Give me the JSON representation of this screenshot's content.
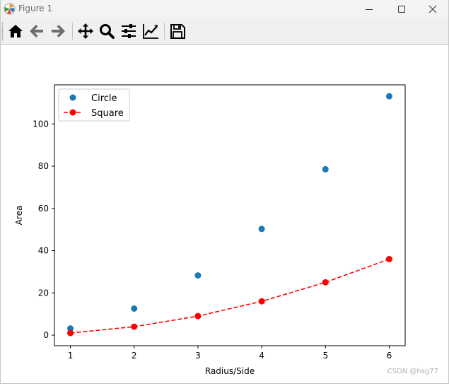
{
  "window": {
    "title": "Figure 1"
  },
  "toolbar": {
    "buttons": [
      {
        "name": "home-icon"
      },
      {
        "name": "back-icon"
      },
      {
        "name": "forward-icon"
      },
      {
        "name": "pan-icon"
      },
      {
        "name": "zoom-icon"
      },
      {
        "name": "configure-subplots-icon"
      },
      {
        "name": "edit-axis-icon"
      },
      {
        "name": "save-icon"
      }
    ]
  },
  "chart_data": {
    "type": "line",
    "title": "",
    "xlabel": "Radius/Side",
    "ylabel": "Area",
    "xlim": [
      0.75,
      6.25
    ],
    "ylim": [
      -5,
      118.5
    ],
    "xticks": [
      1,
      2,
      3,
      4,
      5,
      6
    ],
    "yticks": [
      0,
      20,
      40,
      60,
      80,
      100
    ],
    "grid": false,
    "legend_position": "upper-left",
    "series": [
      {
        "name": "Circle",
        "style": "markers",
        "color": "#1f77b4",
        "x": [
          1,
          2,
          3,
          4,
          5,
          6
        ],
        "y": [
          3.14,
          12.57,
          28.27,
          50.27,
          78.54,
          113.1
        ]
      },
      {
        "name": "Square",
        "style": "dashed-line-markers",
        "color": "#ff0000",
        "x": [
          1,
          2,
          3,
          4,
          5,
          6
        ],
        "y": [
          1,
          4,
          9,
          16,
          25,
          36
        ]
      }
    ]
  },
  "watermark": "CSDN @hsg77"
}
